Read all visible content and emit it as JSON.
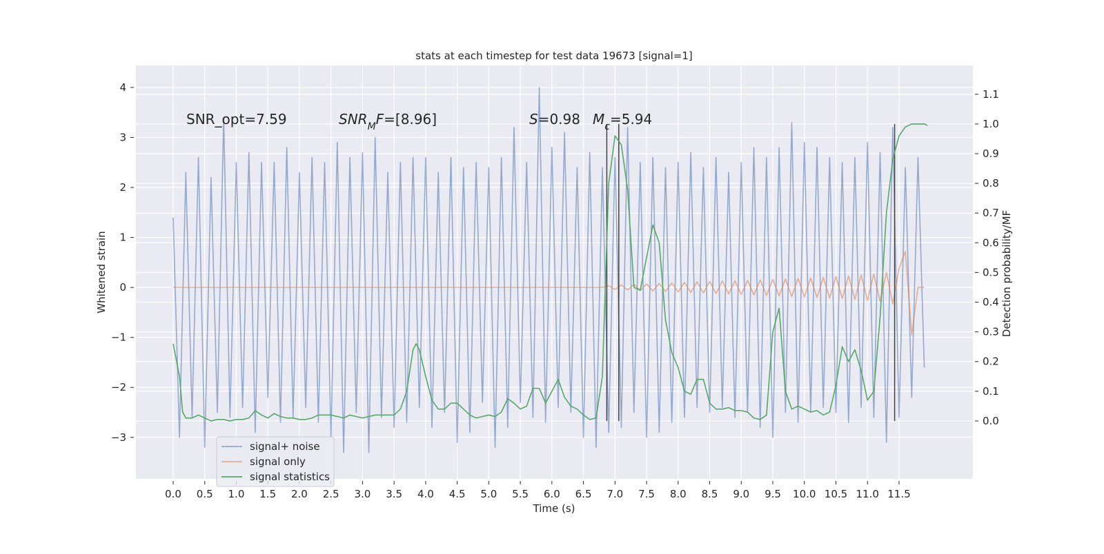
{
  "chart_data": {
    "type": "line",
    "title": "stats at each timestep for test data 19673 [signal=1]",
    "xlabel": "Time (s)",
    "ylabel": "Whitened strain",
    "y2label": "Detection probability/MF",
    "xlim": [
      -0.59,
      12.67
    ],
    "ylim": [
      -3.83,
      4.44
    ],
    "y2lim": [
      -0.195,
      1.197
    ],
    "xticks": [
      {
        "value": 0,
        "label": "0.0"
      },
      0.5,
      {
        "value": 1,
        "label": "1.0"
      },
      1.5,
      {
        "value": 2,
        "label": "2.0"
      },
      2.5,
      {
        "value": 3,
        "label": "3.0"
      },
      3.5,
      {
        "value": 4,
        "label": "4.0"
      },
      4.5,
      {
        "value": 5,
        "label": "5.0"
      },
      5.5,
      {
        "value": 6,
        "label": "6.0"
      },
      6.5,
      {
        "value": 7,
        "label": "7.0"
      },
      7.5,
      {
        "value": 8,
        "label": "8.0"
      },
      8.5,
      {
        "value": 9,
        "label": "9.0"
      },
      9.5,
      {
        "value": 10,
        "label": "10.0"
      },
      10.5,
      {
        "value": 11,
        "label": "11.0"
      },
      11.5
    ],
    "yticks": [
      {
        "value": -3,
        "label": "−3"
      },
      {
        "value": -2,
        "label": "−2"
      },
      {
        "value": -1,
        "label": "−1"
      },
      0,
      1,
      2,
      3,
      4
    ],
    "y2ticks": [
      {
        "value": 0,
        "label": "0.0"
      },
      0.1,
      0.2,
      0.3,
      0.4,
      0.5,
      0.6,
      0.7,
      0.8,
      0.9,
      {
        "value": 1,
        "label": "1.0"
      },
      1.1
    ],
    "grid": true,
    "legend": "lower left",
    "series": [
      {
        "name": "signal+ noise",
        "color": "#4c72b0",
        "x": [
          0.0,
          0.1,
          0.2,
          0.3,
          0.4,
          0.5,
          0.6,
          0.7,
          0.8,
          0.9,
          1.0,
          1.1,
          1.2,
          1.3,
          1.4,
          1.5,
          1.6,
          1.7,
          1.8,
          1.9,
          2.0,
          2.1,
          2.2,
          2.3,
          2.4,
          2.5,
          2.6,
          2.7,
          2.8,
          2.9,
          3.0,
          3.1,
          3.2,
          3.3,
          3.4,
          3.5,
          3.6,
          3.7,
          3.8,
          3.9,
          4.0,
          4.1,
          4.2,
          4.3,
          4.4,
          4.5,
          4.6,
          4.7,
          4.8,
          4.9,
          5.0,
          5.1,
          5.2,
          5.3,
          5.4,
          5.5,
          5.6,
          5.7,
          5.8,
          5.9,
          6.0,
          6.1,
          6.2,
          6.3,
          6.4,
          6.5,
          6.6,
          6.7,
          6.8,
          6.9,
          7.0,
          7.1,
          7.2,
          7.3,
          7.4,
          7.5,
          7.6,
          7.7,
          7.8,
          7.9,
          8.0,
          8.1,
          8.2,
          8.3,
          8.4,
          8.5,
          8.6,
          8.7,
          8.8,
          8.9,
          9.0,
          9.1,
          9.2,
          9.3,
          9.4,
          9.5,
          9.6,
          9.7,
          9.8,
          9.9,
          10.0,
          10.1,
          10.2,
          10.3,
          10.4,
          10.5,
          10.6,
          10.7,
          10.8,
          10.9,
          11.0,
          11.1,
          11.2,
          11.3,
          11.4,
          11.5,
          11.6,
          11.7,
          11.8,
          11.9
        ],
        "values": [
          1.4,
          -3.0,
          2.3,
          -2.6,
          2.6,
          -3.2,
          2.2,
          -2.5,
          3.4,
          -2.6,
          2.5,
          -2.4,
          2.7,
          -2.9,
          2.5,
          -2.2,
          2.5,
          -2.7,
          2.8,
          -2.6,
          2.3,
          -2.4,
          2.6,
          -2.7,
          2.5,
          -3.0,
          2.9,
          -3.3,
          2.6,
          -2.5,
          2.7,
          -3.3,
          3.0,
          -2.6,
          2.3,
          -2.8,
          2.5,
          -2.7,
          2.6,
          -2.4,
          2.6,
          -2.8,
          2.3,
          -2.5,
          2.6,
          -3.1,
          2.4,
          -2.9,
          2.5,
          -2.3,
          2.4,
          -3.2,
          2.6,
          -2.8,
          3.2,
          -2.3,
          2.5,
          -2.6,
          4.0,
          -2.7,
          2.8,
          -2.4,
          3.1,
          -2.5,
          2.4,
          -3.0,
          2.7,
          -3.2,
          2.4,
          -2.9,
          2.6,
          -2.8,
          3.2,
          -2.5,
          2.5,
          -3.0,
          2.6,
          -2.9,
          2.4,
          -2.7,
          2.5,
          -2.6,
          2.7,
          -2.4,
          2.4,
          -2.5,
          2.6,
          -2.4,
          2.3,
          -2.6,
          2.5,
          -2.5,
          2.8,
          -2.8,
          2.6,
          -3.0,
          2.8,
          -2.5,
          3.3,
          -2.7,
          2.9,
          -2.5,
          2.8,
          -2.4,
          2.6,
          -2.5,
          2.5,
          -2.7,
          2.6,
          -2.4,
          2.9,
          -2.6,
          2.7,
          -3.1,
          3.2,
          -2.6,
          2.4,
          -2.2,
          2.6,
          -1.6
        ]
      },
      {
        "name": "signal only",
        "color": "#dd8452",
        "x": [
          0.0,
          0.1,
          0.2,
          0.3,
          0.4,
          0.5,
          0.6,
          0.7,
          0.8,
          0.9,
          1.0,
          1.1,
          1.2,
          1.3,
          1.4,
          1.5,
          1.6,
          1.7,
          1.8,
          1.9,
          2.0,
          2.1,
          2.2,
          2.3,
          2.4,
          2.5,
          2.6,
          2.7,
          2.8,
          2.9,
          3.0,
          3.1,
          3.2,
          3.3,
          3.4,
          3.5,
          3.6,
          3.7,
          3.8,
          3.9,
          4.0,
          4.1,
          4.2,
          4.3,
          4.4,
          4.5,
          4.6,
          4.7,
          4.8,
          4.9,
          5.0,
          5.1,
          5.2,
          5.3,
          5.4,
          5.5,
          5.6,
          5.7,
          5.8,
          5.9,
          6.0,
          6.1,
          6.2,
          6.3,
          6.4,
          6.5,
          6.6,
          6.7,
          6.8,
          6.9,
          7.0,
          7.1,
          7.2,
          7.3,
          7.4,
          7.5,
          7.6,
          7.7,
          7.8,
          7.9,
          8.0,
          8.1,
          8.2,
          8.3,
          8.4,
          8.5,
          8.6,
          8.7,
          8.8,
          8.9,
          9.0,
          9.1,
          9.2,
          9.3,
          9.4,
          9.5,
          9.6,
          9.7,
          9.8,
          9.9,
          10.0,
          10.1,
          10.2,
          10.3,
          10.4,
          10.5,
          10.6,
          10.7,
          10.8,
          10.9,
          11.0,
          11.1,
          11.2,
          11.3,
          11.4,
          11.5,
          11.6,
          11.7,
          11.8,
          11.9
        ],
        "values": [
          0,
          0,
          0,
          0,
          0,
          0,
          0,
          0,
          0,
          0,
          0,
          0,
          0,
          0,
          0,
          0,
          0,
          0,
          0,
          0,
          0,
          0,
          0,
          0,
          0,
          0,
          0,
          0,
          0,
          0,
          0,
          0,
          0,
          0,
          0,
          0,
          0,
          0,
          0,
          0,
          0,
          0,
          0,
          0,
          0,
          0,
          0,
          0,
          0,
          0,
          0,
          0,
          0,
          0,
          0,
          0,
          0,
          0,
          0,
          0,
          0,
          0,
          0,
          0,
          0,
          0,
          0,
          0,
          0,
          0.03,
          -0.04,
          0.05,
          -0.05,
          0.06,
          -0.06,
          0.07,
          -0.07,
          0.08,
          -0.08,
          0.09,
          -0.09,
          0.1,
          -0.1,
          0.11,
          -0.11,
          0.12,
          -0.12,
          0.13,
          -0.13,
          0.13,
          -0.14,
          0.14,
          -0.15,
          0.15,
          -0.16,
          0.16,
          -0.17,
          0.17,
          -0.18,
          0.18,
          -0.19,
          0.19,
          -0.2,
          0.2,
          -0.21,
          0.22,
          -0.22,
          0.23,
          -0.24,
          0.25,
          -0.26,
          0.27,
          -0.28,
          0.3,
          -0.33,
          0.38,
          0.72,
          -0.95,
          0,
          0
        ]
      },
      {
        "name": "signal statistics",
        "color": "#55a868",
        "axis": "y2",
        "x": [
          0.0,
          0.1,
          0.15,
          0.2,
          0.3,
          0.4,
          0.5,
          0.6,
          0.7,
          0.8,
          0.9,
          1.0,
          1.1,
          1.2,
          1.3,
          1.4,
          1.5,
          1.6,
          1.7,
          1.8,
          1.9,
          2.0,
          2.1,
          2.2,
          2.3,
          2.4,
          2.5,
          2.6,
          2.7,
          2.8,
          2.9,
          3.0,
          3.1,
          3.2,
          3.3,
          3.4,
          3.5,
          3.6,
          3.7,
          3.8,
          3.85,
          3.9,
          4.0,
          4.1,
          4.2,
          4.3,
          4.4,
          4.5,
          4.6,
          4.7,
          4.8,
          4.9,
          5.0,
          5.1,
          5.2,
          5.3,
          5.4,
          5.5,
          5.6,
          5.7,
          5.8,
          5.9,
          6.0,
          6.1,
          6.2,
          6.3,
          6.4,
          6.5,
          6.6,
          6.7,
          6.8,
          6.9,
          7.0,
          7.1,
          7.2,
          7.3,
          7.4,
          7.5,
          7.6,
          7.7,
          7.8,
          7.9,
          8.0,
          8.1,
          8.2,
          8.3,
          8.4,
          8.5,
          8.6,
          8.7,
          8.8,
          8.9,
          9.0,
          9.1,
          9.2,
          9.3,
          9.4,
          9.5,
          9.6,
          9.7,
          9.8,
          9.9,
          10.0,
          10.1,
          10.2,
          10.3,
          10.4,
          10.5,
          10.6,
          10.7,
          10.8,
          10.9,
          11.0,
          11.1,
          11.2,
          11.3,
          11.4,
          11.5,
          11.6,
          11.7,
          11.8,
          11.9,
          11.95
        ],
        "values": [
          0.26,
          0.15,
          0.03,
          0.01,
          0.01,
          0.02,
          0.01,
          0,
          0.005,
          0.005,
          0,
          0.005,
          0.005,
          0.01,
          0.035,
          0.02,
          0.01,
          0.025,
          0.015,
          0.01,
          0.01,
          0.005,
          0.005,
          0.01,
          0.02,
          0.02,
          0.02,
          0.015,
          0.01,
          0.02,
          0.015,
          0.01,
          0.015,
          0.02,
          0.02,
          0.02,
          0.02,
          0.04,
          0.1,
          0.24,
          0.26,
          0.24,
          0.15,
          0.07,
          0.04,
          0.04,
          0.06,
          0.06,
          0.04,
          0.02,
          0.01,
          0.015,
          0.02,
          0.015,
          0.03,
          0.075,
          0.06,
          0.04,
          0.05,
          0.11,
          0.11,
          0.06,
          0.1,
          0.14,
          0.08,
          0.05,
          0.04,
          0.02,
          0.005,
          0.01,
          0.15,
          0.8,
          0.96,
          0.93,
          0.78,
          0.45,
          0.44,
          0.55,
          0.66,
          0.6,
          0.34,
          0.23,
          0.18,
          0.1,
          0.09,
          0.14,
          0.14,
          0.06,
          0.04,
          0.04,
          0.045,
          0.035,
          0.035,
          0.03,
          0.01,
          0.005,
          0.02,
          0.3,
          0.38,
          0.1,
          0.04,
          0.05,
          0.04,
          0.03,
          0.035,
          0.02,
          0.03,
          0.12,
          0.25,
          0.2,
          0.24,
          0.17,
          0.07,
          0.1,
          0.35,
          0.7,
          0.88,
          0.96,
          0.99,
          1.0,
          1.0,
          1.0,
          0.995
        ]
      }
    ],
    "vlines": {
      "x": [
        6.87,
        7.06,
        11.43
      ],
      "ymin": 0,
      "ymax": 1,
      "axis": "y2",
      "color": "#404040"
    },
    "annotations": [
      {
        "segments": [
          {
            "text": "SNR_opt=7.59",
            "style": "normal"
          }
        ]
      },
      {
        "segments": [
          {
            "text": "SNR",
            "style": "italic"
          },
          {
            "text": "M",
            "style": "italic-sub"
          },
          {
            "text": "F",
            "style": "italic"
          },
          {
            "text": "=[8.96]",
            "style": "normal"
          }
        ]
      },
      {
        "segments": [
          {
            "text": "S",
            "style": "italic"
          },
          {
            "text": "=0.98",
            "style": "normal"
          }
        ]
      },
      {
        "segments": [
          {
            "text": "M",
            "style": "italic"
          },
          {
            "text": "c",
            "style": "italic-sub"
          },
          {
            "text": "=5.94",
            "style": "normal"
          }
        ]
      }
    ]
  }
}
